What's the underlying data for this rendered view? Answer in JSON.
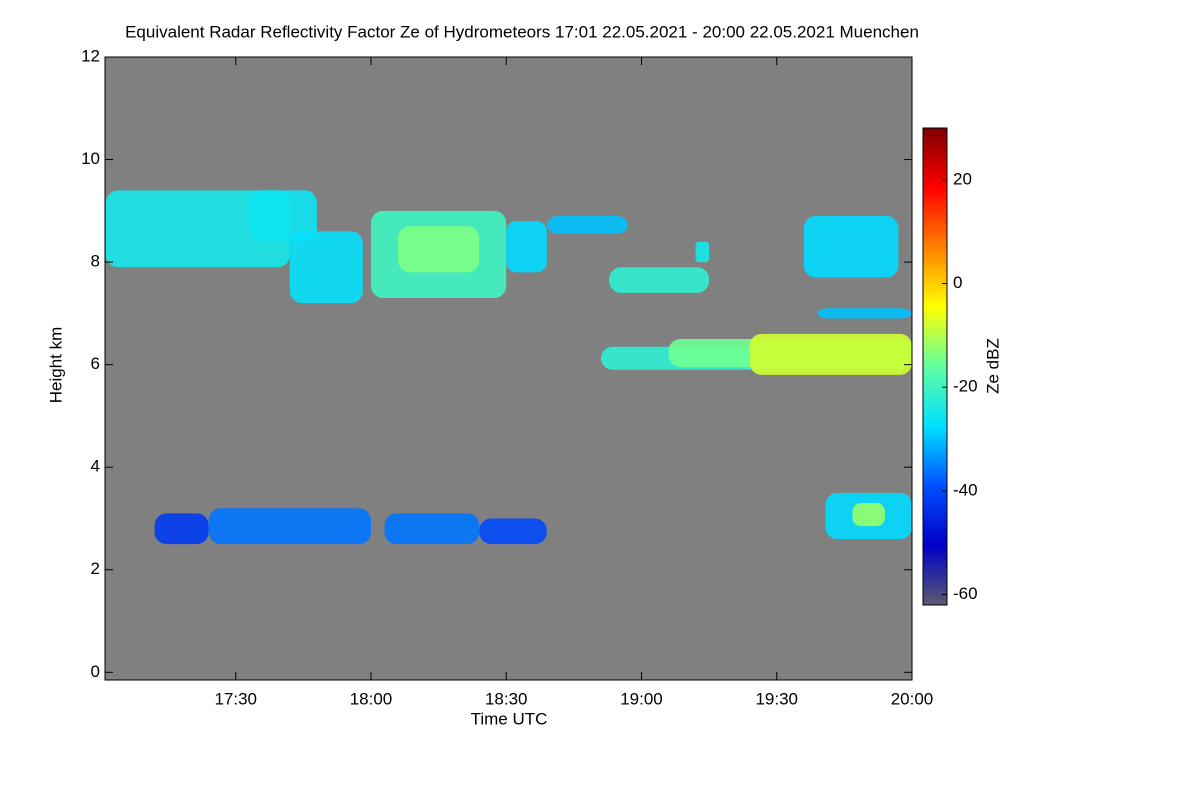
{
  "chart_data": {
    "type": "heatmap",
    "title": "Equivalent Radar Reflectivity Factor Ze of Hydrometeors   17:01 22.05.2021 - 20:00 22.05.2021 Muenchen",
    "x_label": "Time UTC",
    "y_label": "Height km",
    "z_label": "Ze dBZ",
    "xlim": [
      17.0167,
      20.0
    ],
    "xticks": [
      {
        "value": 17.5,
        "label": "17:30"
      },
      {
        "value": 18.0,
        "label": "18:00"
      },
      {
        "value": 18.5,
        "label": "18:30"
      },
      {
        "value": 19.0,
        "label": "19:00"
      },
      {
        "value": 19.5,
        "label": "19:30"
      },
      {
        "value": 20.0,
        "label": "20:00"
      }
    ],
    "ylim": [
      -0.15,
      12
    ],
    "yticks": [
      0,
      2,
      4,
      6,
      8,
      10,
      12
    ],
    "zlim": [
      -62,
      30
    ],
    "zticks": [
      -60,
      -40,
      -20,
      0,
      20
    ],
    "background": "#808080",
    "colormap": [
      "#5a5a6e",
      "#0000c8",
      "#0050ff",
      "#00e0ff",
      "#60ffa0",
      "#ffff00",
      "#ff8000",
      "#ff0000",
      "#800000"
    ],
    "cells": [
      [
        17.02,
        17.7,
        7.9,
        9.4,
        -25
      ],
      [
        17.55,
        17.8,
        8.4,
        9.4,
        -26
      ],
      [
        17.7,
        17.97,
        7.2,
        8.6,
        -27
      ],
      [
        18.0,
        18.5,
        7.3,
        9.0,
        -20
      ],
      [
        18.1,
        18.4,
        7.8,
        8.7,
        -14
      ],
      [
        18.5,
        18.65,
        7.8,
        8.8,
        -28
      ],
      [
        18.65,
        18.95,
        8.55,
        8.9,
        -30
      ],
      [
        18.88,
        19.25,
        7.4,
        7.9,
        -22
      ],
      [
        19.2,
        19.25,
        8.0,
        8.4,
        -25
      ],
      [
        19.6,
        19.95,
        7.7,
        8.9,
        -28
      ],
      [
        19.65,
        20.0,
        6.9,
        7.1,
        -30
      ],
      [
        18.85,
        20.0,
        5.9,
        6.35,
        -22
      ],
      [
        19.1,
        20.0,
        5.95,
        6.5,
        -15
      ],
      [
        19.4,
        20.0,
        5.8,
        6.6,
        -8
      ],
      [
        17.2,
        17.4,
        2.5,
        3.1,
        -42
      ],
      [
        17.4,
        18.0,
        2.5,
        3.2,
        -36
      ],
      [
        18.05,
        18.4,
        2.5,
        3.1,
        -36
      ],
      [
        18.4,
        18.65,
        2.5,
        3.0,
        -40
      ],
      [
        19.68,
        20.0,
        2.6,
        3.5,
        -28
      ],
      [
        19.78,
        19.9,
        2.85,
        3.3,
        -12
      ]
    ]
  }
}
